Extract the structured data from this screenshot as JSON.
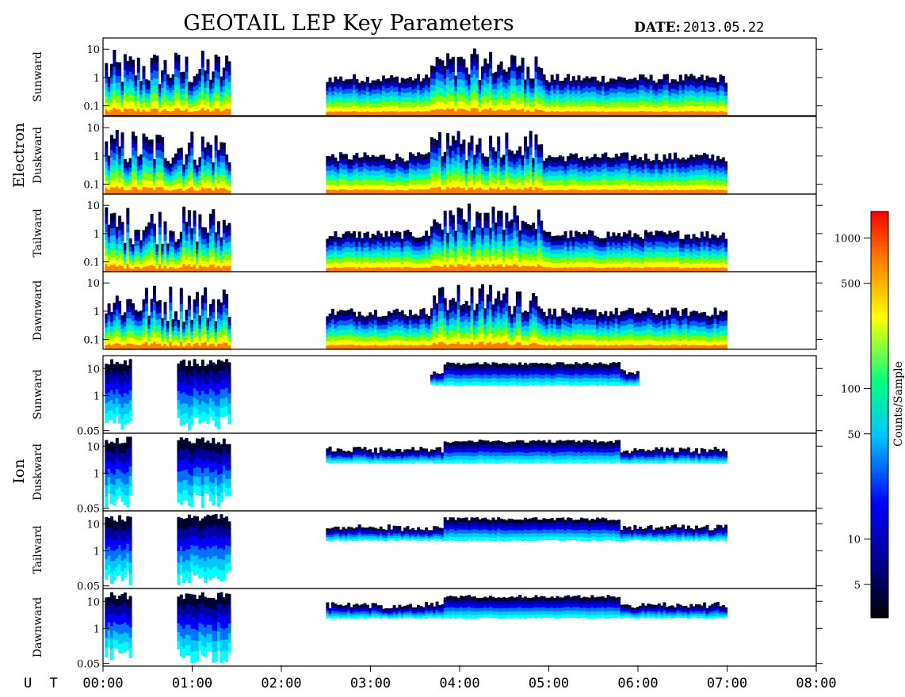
{
  "header": {
    "title": "GEOTAIL LEP Key Parameters",
    "date_label": "DATE:",
    "date_value": "2013.05.22"
  },
  "groups": {
    "electron": "Electron",
    "ion": "Ion"
  },
  "x_axis": {
    "label": "U T",
    "ticks": [
      "00:00",
      "01:00",
      "02:00",
      "03:00",
      "04:00",
      "05:00",
      "06:00",
      "07:00",
      "08:00"
    ]
  },
  "colorbar": {
    "label": "Counts/Sample",
    "ticks": [
      "1000",
      "500",
      "100",
      "50",
      "10",
      "5"
    ]
  },
  "chart_data": {
    "type": "heatmap",
    "title": "GEOTAIL LEP Key Parameters",
    "x_unit": "UT (hours)",
    "x_range": [
      0,
      8
    ],
    "scale": "log",
    "colorbar_range": [
      3,
      1500
    ],
    "color_scale": [
      "#000000",
      "#0000ff",
      "#00ffff",
      "#00ff00",
      "#ffff00",
      "#ff0000"
    ],
    "data_gaps_ut_hours": [
      [
        1.42,
        2.5
      ]
    ],
    "data_end_ut_hours": 7.0,
    "panels": [
      {
        "group": "Electron",
        "name": "Sunward",
        "y_ticks": [
          "10",
          "1",
          "0.1"
        ],
        "y_tick_values": [
          10,
          1,
          0.1
        ],
        "y_range": [
          0.045,
          25
        ]
      },
      {
        "group": "Electron",
        "name": "Duskward",
        "y_ticks": [
          "10",
          "1",
          "0.1"
        ],
        "y_tick_values": [
          10,
          1,
          0.1
        ],
        "y_range": [
          0.045,
          25
        ]
      },
      {
        "group": "Electron",
        "name": "Tailward",
        "y_ticks": [
          "10",
          "1",
          "0.1"
        ],
        "y_tick_values": [
          10,
          1,
          0.1
        ],
        "y_range": [
          0.045,
          25
        ]
      },
      {
        "group": "Electron",
        "name": "Dawnward",
        "y_ticks": [
          "10",
          "1",
          "0.1"
        ],
        "y_tick_values": [
          10,
          1,
          0.1
        ],
        "y_range": [
          0.045,
          25
        ]
      },
      {
        "group": "Ion",
        "name": "Sunward",
        "y_ticks": [
          "10",
          "1",
          "0.05"
        ],
        "y_tick_values": [
          10,
          1,
          0.05
        ],
        "y_range": [
          0.04,
          30
        ]
      },
      {
        "group": "Ion",
        "name": "Duskward",
        "y_ticks": [
          "10",
          "1",
          "0.05"
        ],
        "y_tick_values": [
          10,
          1,
          0.05
        ],
        "y_range": [
          0.04,
          30
        ]
      },
      {
        "group": "Ion",
        "name": "Tailward",
        "y_ticks": [
          "10",
          "1",
          "0.05"
        ],
        "y_tick_values": [
          10,
          1,
          0.05
        ],
        "y_range": [
          0.04,
          30
        ]
      },
      {
        "group": "Ion",
        "name": "Dawnward",
        "y_ticks": [
          "10",
          "1",
          "0.05"
        ],
        "y_tick_values": [
          10,
          1,
          0.05
        ],
        "y_range": [
          0.04,
          30
        ]
      }
    ]
  }
}
